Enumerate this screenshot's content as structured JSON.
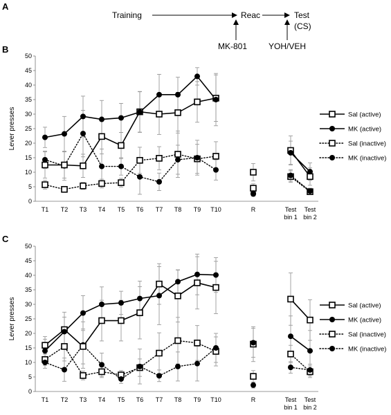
{
  "panel_labels": [
    "A",
    "B",
    "C"
  ],
  "schedule": {
    "training": "Training",
    "reac": "Reac",
    "test_line1": "Test",
    "test_line2": "(CS)",
    "mk801": "MK-801",
    "yoh_veh": "YOH/VEH"
  },
  "chart_data": [
    {
      "panel": "B",
      "type": "line",
      "ylabel": "Lever presses",
      "ylim": [
        0,
        50
      ],
      "yticks": [
        0,
        5,
        10,
        15,
        20,
        25,
        30,
        35,
        40,
        45,
        50
      ],
      "categories": [
        "T1",
        "T2",
        "T3",
        "T4",
        "T5",
        "T6",
        "T7",
        "T8",
        "T9",
        "T10",
        "R",
        "Test bin 1",
        "Test bin 2"
      ],
      "series": [
        {
          "name": "Sal (active)",
          "marker": "open-square",
          "line": "solid",
          "values": [
            12.5,
            12.5,
            12.2,
            22.3,
            19.2,
            30.8,
            30.0,
            30.5,
            34.2,
            35.5,
            10.0,
            17.5,
            8.5
          ],
          "errors": [
            4.5,
            4.5,
            4.0,
            6.0,
            4.5,
            7.0,
            7.0,
            7.0,
            7.0,
            8.0,
            3.0,
            5.0,
            3.0
          ]
        },
        {
          "name": "MK (active)",
          "marker": "filled-circle",
          "line": "solid",
          "values": [
            22.0,
            23.2,
            29.2,
            28.2,
            28.7,
            30.7,
            36.7,
            36.7,
            43.0,
            35.0,
            2.8,
            16.7,
            10.2
          ],
          "errors": [
            3.5,
            6.0,
            7.0,
            6.5,
            5.0,
            7.0,
            7.0,
            6.0,
            3.0,
            9.0,
            1.0,
            4.0,
            3.0
          ]
        },
        {
          "name": "Sal (inactive)",
          "marker": "open-square",
          "line": "dotted",
          "values": [
            5.7,
            4.1,
            5.3,
            6.1,
            6.4,
            14.1,
            14.8,
            16.2,
            14.6,
            15.5,
            4.5,
            8.5,
            3.3
          ],
          "errors": [
            1.5,
            1.0,
            1.2,
            1.5,
            1.5,
            4.5,
            4.0,
            8.0,
            5.0,
            5.0,
            1.5,
            2.0,
            1.0
          ]
        },
        {
          "name": "MK (inactive)",
          "marker": "filled-circle",
          "line": "dotted",
          "values": [
            14.3,
            12.2,
            23.3,
            12.0,
            12.0,
            8.4,
            6.7,
            14.3,
            15.0,
            10.8,
            2.5,
            8.9,
            3.5
          ],
          "errors": [
            3.0,
            5.0,
            8.0,
            6.0,
            3.0,
            6.0,
            3.0,
            5.0,
            6.0,
            3.5,
            0.5,
            2.0,
            1.0
          ]
        }
      ]
    },
    {
      "panel": "C",
      "type": "line",
      "ylabel": "Lever presses",
      "ylim": [
        0,
        50
      ],
      "yticks": [
        0,
        5,
        10,
        15,
        20,
        25,
        30,
        35,
        40,
        45,
        50
      ],
      "categories": [
        "T1",
        "T2",
        "T3",
        "T4",
        "T5",
        "T6",
        "T7",
        "T8",
        "T9",
        "T10",
        "R",
        "Test bin 1",
        "Test bin 2"
      ],
      "series": [
        {
          "name": "Sal (active)",
          "marker": "open-square",
          "line": "solid",
          "values": [
            15.9,
            21.3,
            15.5,
            24.4,
            24.4,
            27.1,
            37.0,
            32.9,
            37.4,
            35.8,
            5.2,
            31.8,
            24.6
          ],
          "errors": [
            3.0,
            6.0,
            6.0,
            7.0,
            7.0,
            9.0,
            7.0,
            9.0,
            9.0,
            9.0,
            2.0,
            9.0,
            7.0
          ]
        },
        {
          "name": "MK (active)",
          "marker": "filled-circle",
          "line": "solid",
          "values": [
            14.0,
            20.6,
            27.0,
            30.0,
            30.5,
            32.0,
            33.0,
            37.8,
            40.3,
            40.1,
            16.8,
            19.0,
            14.0
          ],
          "errors": [
            4.0,
            5.0,
            6.0,
            6.0,
            4.0,
            6.0,
            10.0,
            4.0,
            7.0,
            6.0,
            5.0,
            7.0,
            7.0
          ]
        },
        {
          "name": "Sal (inactive)",
          "marker": "open-square",
          "line": "dotted",
          "values": [
            11.0,
            15.5,
            5.5,
            6.8,
            5.7,
            8.2,
            13.2,
            17.5,
            16.7,
            13.8,
            16.3,
            12.9,
            6.8
          ],
          "errors": [
            2.0,
            5.0,
            1.5,
            2.0,
            1.5,
            3.0,
            7.0,
            8.0,
            6.0,
            5.0,
            6.0,
            3.0,
            2.0
          ]
        },
        {
          "name": "MK (inactive)",
          "marker": "filled-circle",
          "line": "dotted",
          "values": [
            10.0,
            7.5,
            16.0,
            9.2,
            4.3,
            8.6,
            5.4,
            8.6,
            9.6,
            15.0,
            2.2,
            8.3,
            7.4
          ],
          "errors": [
            2.0,
            4.0,
            8.0,
            4.0,
            1.5,
            6.0,
            2.0,
            5.0,
            6.0,
            5.0,
            1.0,
            2.0,
            2.0
          ]
        }
      ]
    }
  ]
}
